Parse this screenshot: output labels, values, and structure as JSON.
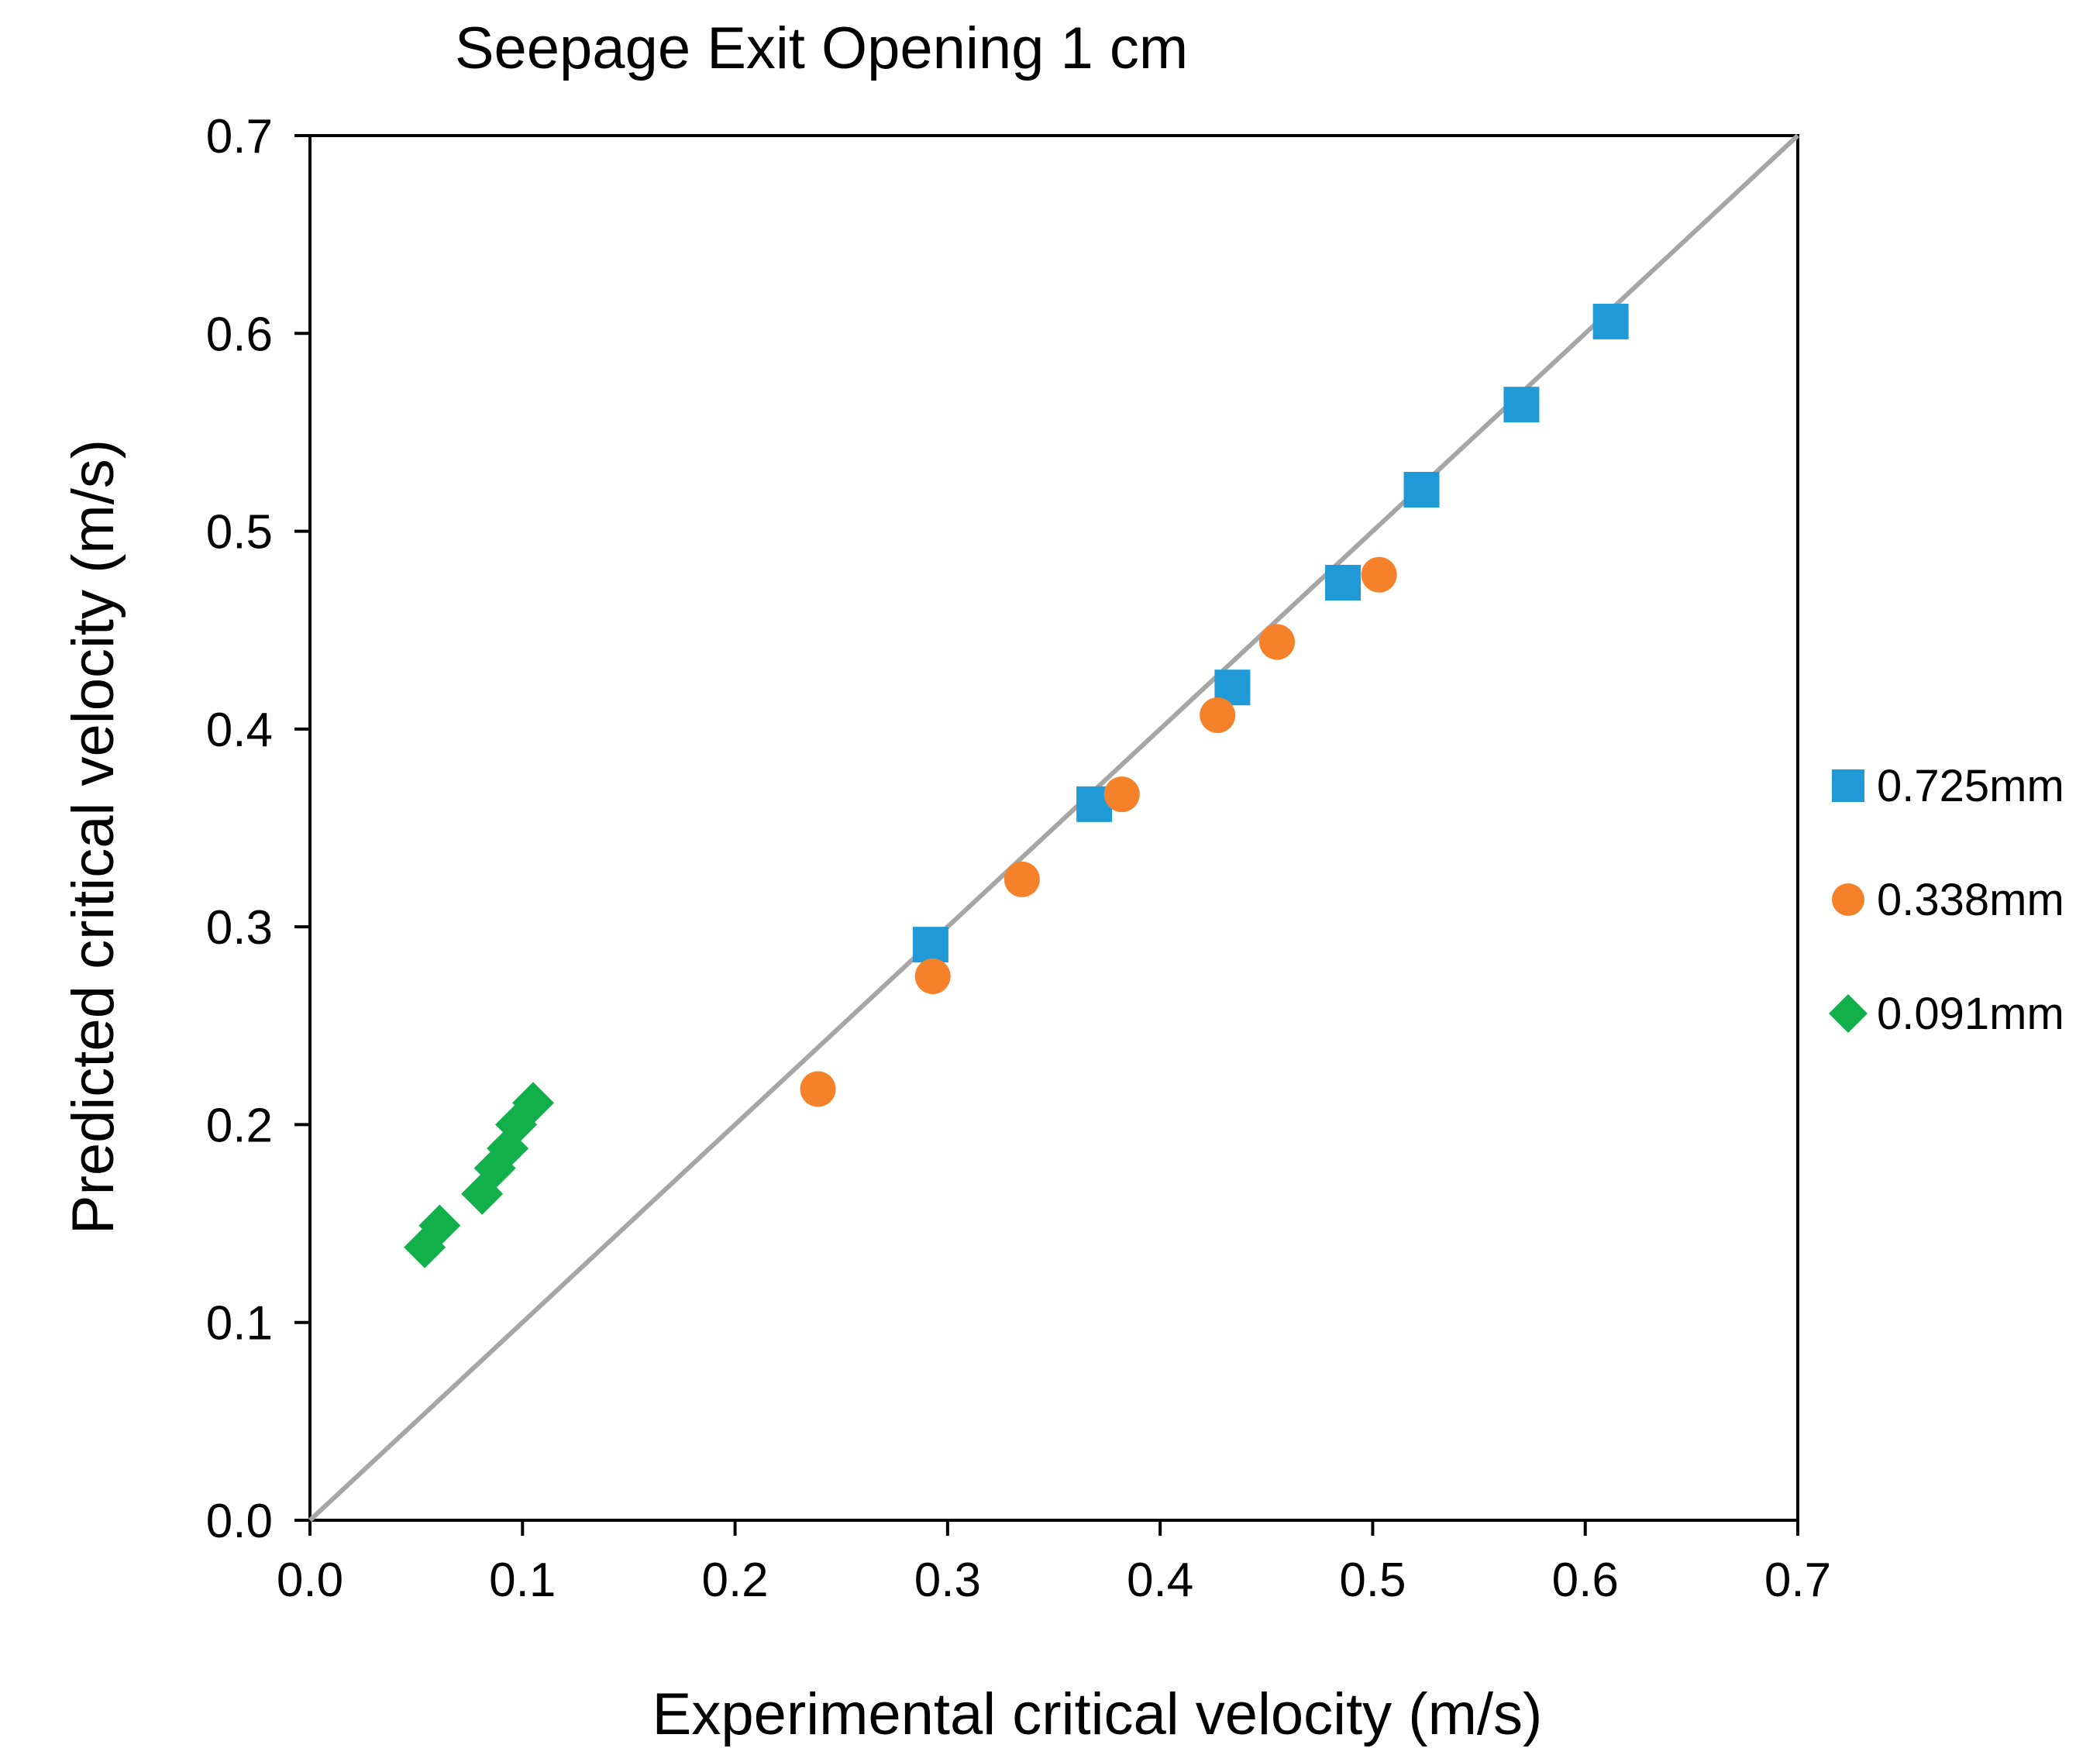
{
  "chart_data": {
    "type": "scatter",
    "title": "Seepage Exit Opening 1 cm",
    "xlabel": "Experimental critical velocity (m/s)",
    "ylabel": "Predicted critical velocity (m/s)",
    "xlim": [
      0,
      0.7
    ],
    "ylim": [
      0,
      0.7
    ],
    "xticks": [
      "0.0",
      "0.1",
      "0.2",
      "0.3",
      "0.4",
      "0.5",
      "0.6",
      "0.7"
    ],
    "yticks": [
      "0.0",
      "0.1",
      "0.2",
      "0.3",
      "0.4",
      "0.5",
      "0.6",
      "0.7"
    ],
    "grid": false,
    "legend_position": "right",
    "reference_line": {
      "from": [
        0,
        0
      ],
      "to": [
        0.7,
        0.7
      ],
      "color": "#a6a6a6"
    },
    "series": [
      {
        "name": "0.725mm",
        "marker": "square",
        "color": "#1f9ad7",
        "points": [
          [
            0.292,
            0.291
          ],
          [
            0.369,
            0.362
          ],
          [
            0.434,
            0.421
          ],
          [
            0.486,
            0.474
          ],
          [
            0.523,
            0.521
          ],
          [
            0.57,
            0.564
          ],
          [
            0.612,
            0.606
          ]
        ]
      },
      {
        "name": "0.338mm",
        "marker": "circle",
        "color": "#f5822a",
        "points": [
          [
            0.239,
            0.218
          ],
          [
            0.293,
            0.275
          ],
          [
            0.335,
            0.324
          ],
          [
            0.382,
            0.367
          ],
          [
            0.427,
            0.407
          ],
          [
            0.455,
            0.444
          ],
          [
            0.503,
            0.478
          ]
        ]
      },
      {
        "name": "0.091mm",
        "marker": "diamond",
        "color": "#11b04a",
        "points": [
          [
            0.054,
            0.138
          ],
          [
            0.061,
            0.149
          ],
          [
            0.081,
            0.165
          ],
          [
            0.087,
            0.178
          ],
          [
            0.093,
            0.188
          ],
          [
            0.097,
            0.2
          ],
          [
            0.105,
            0.211
          ]
        ]
      }
    ]
  }
}
